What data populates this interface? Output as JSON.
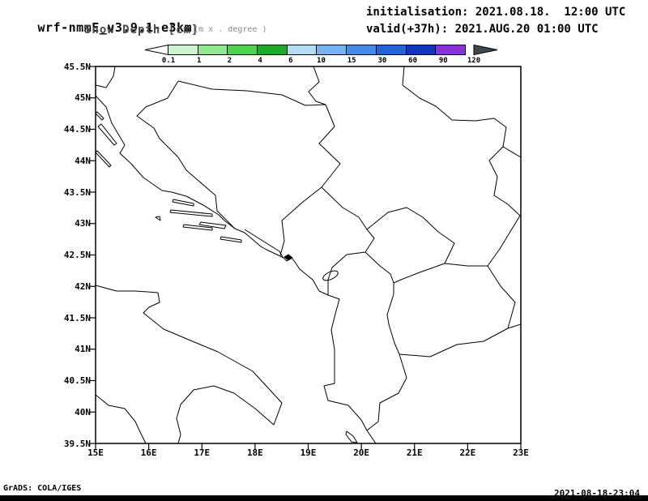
{
  "header": {
    "model": "wrf-nmmE_v3.9.1-e3km",
    "units": "(m x . degree )",
    "initialisation": "initialisation: 2021.08.18.  12:00 UTC",
    "variable": "Snow Depth [cm]",
    "valid": "valid(+37h): 2021.AUG.20 01:00 UTC"
  },
  "colorbar": {
    "tick_labels": [
      "0.1",
      "1",
      "2",
      "4",
      "6",
      "10",
      "15",
      "30",
      "60",
      "90",
      "120"
    ],
    "segment_colors": [
      "#cdf5cd",
      "#90e890",
      "#50d250",
      "#1eaa28",
      "#b4dcf5",
      "#78b4f0",
      "#468ce6",
      "#2364d7",
      "#0f35b9",
      "#8733d6"
    ],
    "below_min_color": "#ffffff",
    "above_max_color": "#3d4852"
  },
  "axes": {
    "y_tick_labels": [
      "45.5N",
      "45N",
      "44.5N",
      "44N",
      "43.5N",
      "43N",
      "42.5N",
      "42N",
      "41.5N",
      "41N",
      "40.5N",
      "40N",
      "39.5N"
    ],
    "x_tick_labels": [
      "15E",
      "16E",
      "17E",
      "18E",
      "19E",
      "20E",
      "21E",
      "22E",
      "23E"
    ]
  },
  "footer": {
    "credit": "GrADS: COLA/IGES",
    "timestamp": "2021-08-18-23:04"
  }
}
